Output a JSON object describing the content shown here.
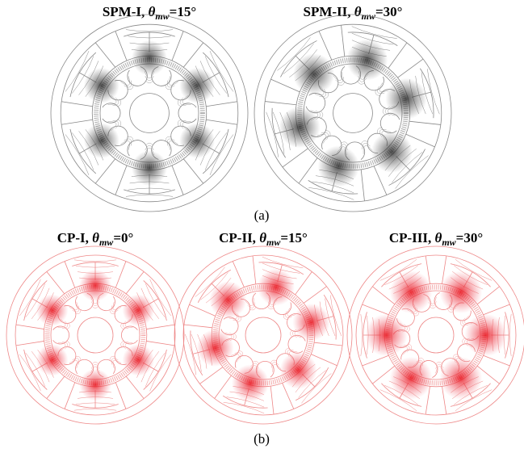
{
  "panels": [
    {
      "label": "(a)",
      "figures": [
        {
          "prefix": "SPM-I, ",
          "symbol": "θ",
          "subscript": "mw",
          "suffix": "=15°"
        },
        {
          "prefix": "SPM-II, ",
          "symbol": "θ",
          "subscript": "mw",
          "suffix": "=30°"
        }
      ]
    },
    {
      "label": "(b)",
      "figures": [
        {
          "prefix": "CP-I, ",
          "symbol": "θ",
          "subscript": "mw",
          "suffix": "=0°"
        },
        {
          "prefix": "CP-II, ",
          "symbol": "θ",
          "subscript": "mw",
          "suffix": "=15°"
        },
        {
          "prefix": "CP-III, ",
          "symbol": "θ",
          "subscript": "mw",
          "suffix": "=30°"
        }
      ]
    }
  ]
}
